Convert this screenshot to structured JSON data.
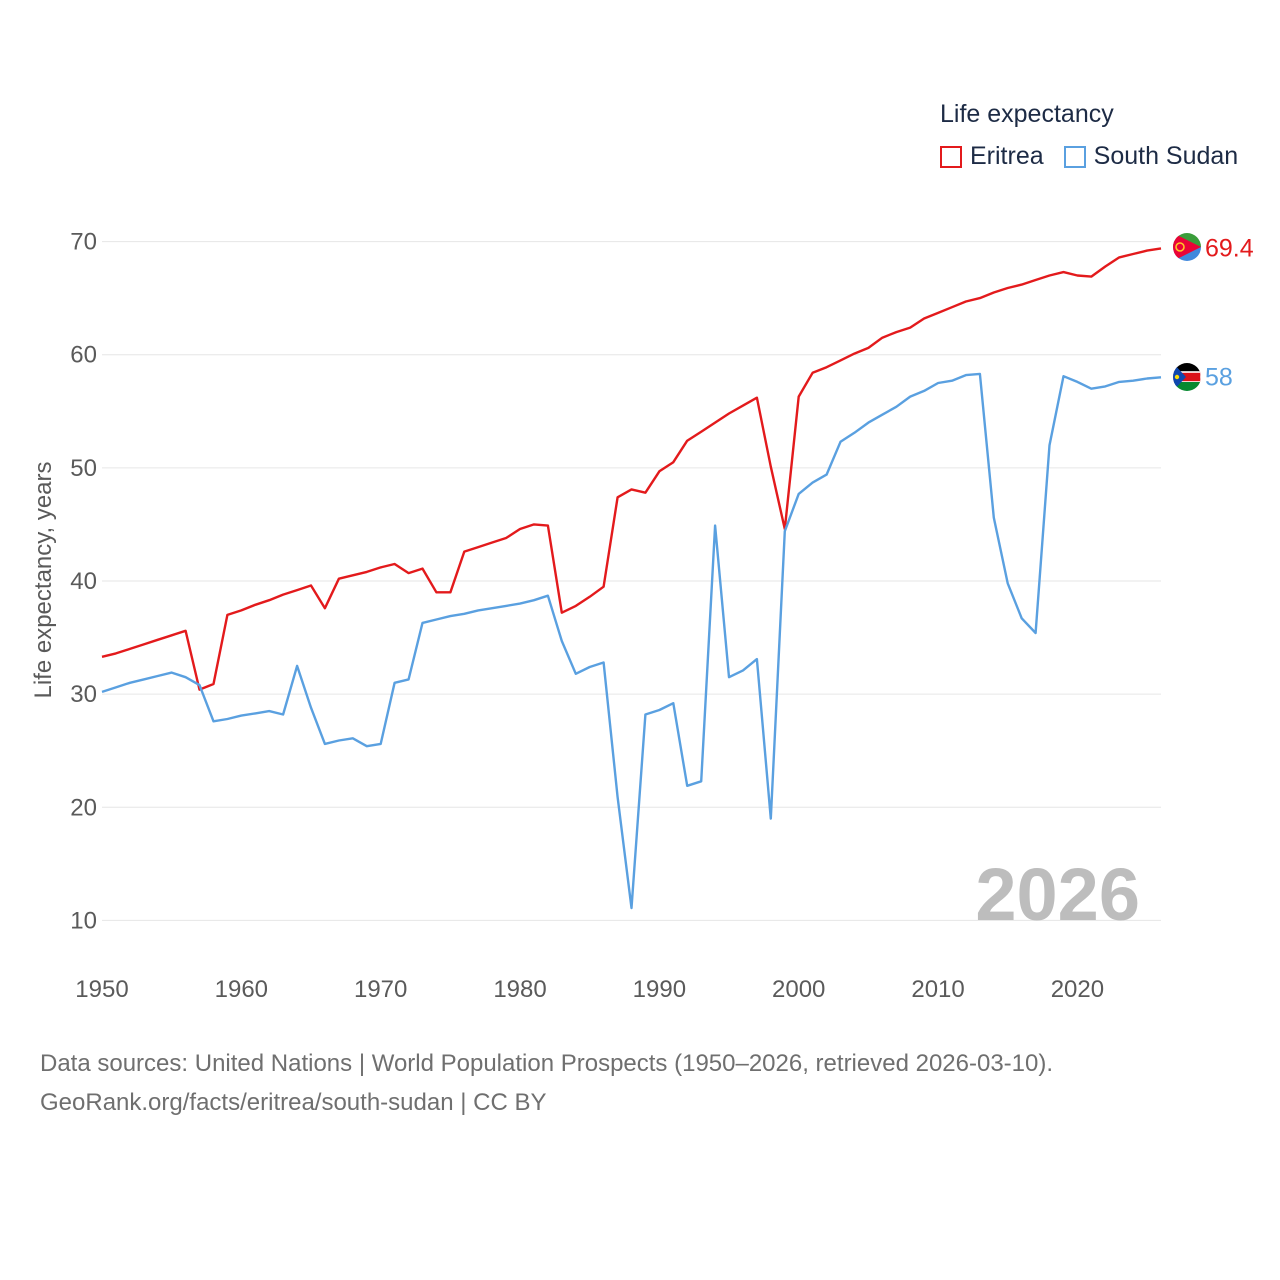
{
  "legend": {
    "title": "Life expectancy",
    "items": [
      {
        "label": "Eritrea",
        "color": "#e31a1c"
      },
      {
        "label": "South Sudan",
        "color": "#5aa0e0"
      }
    ]
  },
  "source": {
    "line1": "Data sources: United Nations | World Population Prospects (1950–2026, retrieved 2026-03-10).",
    "line2": "GeoRank.org/facts/eritrea/south-sudan | CC BY"
  },
  "chart_data": {
    "type": "line",
    "ylabel": "Life expectancy, years",
    "xlabel": "",
    "year_label": "2026",
    "xlim": [
      1950,
      2026
    ],
    "ylim": [
      5,
      75
    ],
    "x_ticks": [
      1950,
      1960,
      1970,
      1980,
      1990,
      2000,
      2010,
      2020
    ],
    "y_ticks": [
      10,
      20,
      30,
      40,
      50,
      60,
      70
    ],
    "grid": true,
    "legend_position": "top-right",
    "series": [
      {
        "name": "Eritrea",
        "color": "#e31a1c",
        "end_label": "69.4",
        "x": [
          1950,
          1951,
          1952,
          1953,
          1954,
          1955,
          1956,
          1957,
          1958,
          1959,
          1960,
          1961,
          1962,
          1963,
          1964,
          1965,
          1966,
          1967,
          1968,
          1969,
          1970,
          1971,
          1972,
          1973,
          1974,
          1975,
          1976,
          1977,
          1978,
          1979,
          1980,
          1981,
          1982,
          1983,
          1984,
          1985,
          1986,
          1987,
          1988,
          1989,
          1990,
          1991,
          1992,
          1993,
          1994,
          1995,
          1996,
          1997,
          1998,
          1999,
          2000,
          2001,
          2002,
          2003,
          2004,
          2005,
          2006,
          2007,
          2008,
          2009,
          2010,
          2011,
          2012,
          2013,
          2014,
          2015,
          2016,
          2017,
          2018,
          2019,
          2020,
          2021,
          2022,
          2023,
          2024,
          2025,
          2026
        ],
        "values": [
          33.3,
          33.6,
          34.0,
          34.4,
          34.8,
          35.2,
          35.6,
          30.4,
          30.9,
          37.0,
          37.4,
          37.9,
          38.3,
          38.8,
          39.2,
          39.6,
          37.6,
          40.2,
          40.5,
          40.8,
          41.2,
          41.5,
          40.7,
          41.1,
          39.0,
          39.0,
          42.6,
          43.0,
          43.4,
          43.8,
          44.6,
          45.0,
          44.9,
          37.2,
          37.8,
          38.6,
          39.5,
          47.4,
          48.1,
          47.8,
          49.7,
          50.5,
          52.4,
          53.2,
          54.0,
          54.8,
          55.5,
          56.2,
          50.1,
          44.6,
          56.3,
          58.4,
          58.9,
          59.5,
          60.1,
          60.6,
          61.5,
          62.0,
          62.4,
          63.2,
          63.7,
          64.2,
          64.7,
          65.0,
          65.5,
          65.9,
          66.2,
          66.6,
          67.0,
          67.3,
          67.0,
          66.9,
          67.8,
          68.6,
          68.9,
          69.2,
          69.4
        ]
      },
      {
        "name": "South Sudan",
        "color": "#5aa0e0",
        "end_label": "58",
        "x": [
          1950,
          1951,
          1952,
          1953,
          1954,
          1955,
          1956,
          1957,
          1958,
          1959,
          1960,
          1961,
          1962,
          1963,
          1964,
          1965,
          1966,
          1967,
          1968,
          1969,
          1970,
          1971,
          1972,
          1973,
          1974,
          1975,
          1976,
          1977,
          1978,
          1979,
          1980,
          1981,
          1982,
          1983,
          1984,
          1985,
          1986,
          1987,
          1988,
          1989,
          1990,
          1991,
          1992,
          1993,
          1994,
          1995,
          1996,
          1997,
          1998,
          1999,
          2000,
          2001,
          2002,
          2003,
          2004,
          2005,
          2006,
          2007,
          2008,
          2009,
          2010,
          2011,
          2012,
          2013,
          2014,
          2015,
          2016,
          2017,
          2018,
          2019,
          2020,
          2021,
          2022,
          2023,
          2024,
          2025,
          2026
        ],
        "values": [
          30.2,
          30.6,
          31.0,
          31.3,
          31.6,
          31.9,
          31.5,
          30.8,
          27.6,
          27.8,
          28.1,
          28.3,
          28.5,
          28.2,
          32.5,
          28.8,
          25.6,
          25.9,
          26.1,
          25.4,
          25.6,
          31.0,
          31.3,
          36.3,
          36.6,
          36.9,
          37.1,
          37.4,
          37.6,
          37.8,
          38.0,
          38.3,
          38.7,
          34.7,
          31.8,
          32.4,
          32.8,
          20.9,
          11.1,
          28.2,
          28.6,
          29.2,
          21.9,
          22.3,
          44.9,
          31.5,
          32.1,
          33.1,
          19.0,
          44.4,
          47.7,
          48.7,
          49.4,
          52.3,
          53.1,
          54.0,
          54.7,
          55.4,
          56.3,
          56.8,
          57.5,
          57.7,
          58.2,
          58.3,
          45.6,
          39.8,
          36.7,
          35.4,
          52.0,
          58.1,
          57.6,
          57.0,
          57.2,
          57.6,
          57.7,
          57.9,
          58.0
        ]
      }
    ]
  }
}
